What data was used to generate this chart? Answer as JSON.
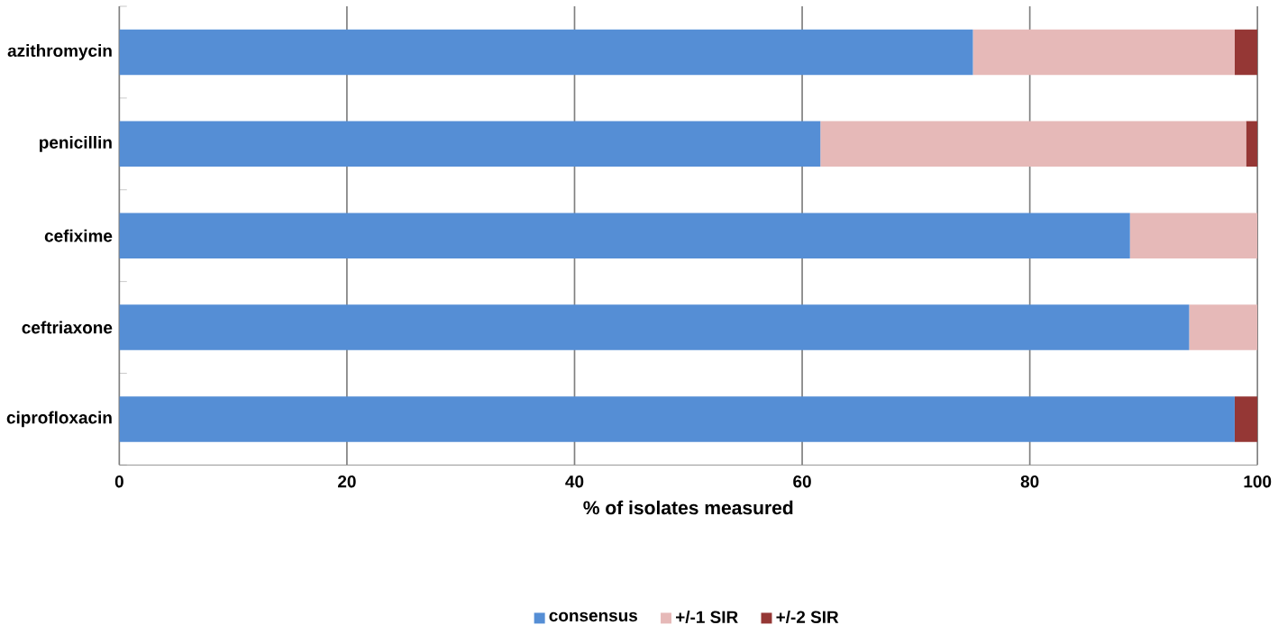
{
  "chart_data": {
    "type": "bar",
    "orientation": "horizontal",
    "stacked": true,
    "categories": [
      "azithromycin",
      "penicillin",
      "cefixime",
      "ceftriaxone",
      "ciprofloxacin"
    ],
    "series": [
      {
        "name": "consensus",
        "color": "#558ed5",
        "values": [
          75,
          61.6,
          88.8,
          94,
          98
        ]
      },
      {
        "name": "+/-1 SIR",
        "color": "#e6b9b8",
        "values": [
          23,
          37.4,
          11.2,
          6,
          0
        ]
      },
      {
        "name": "+/-2 SIR",
        "color": "#953735",
        "values": [
          2,
          1,
          0,
          0,
          2
        ]
      }
    ],
    "xlabel": "% of isolates measured",
    "xlim": [
      0,
      100
    ],
    "xticks": [
      0,
      20,
      40,
      60,
      80,
      100
    ],
    "grid": "x",
    "legend": "bottom"
  }
}
